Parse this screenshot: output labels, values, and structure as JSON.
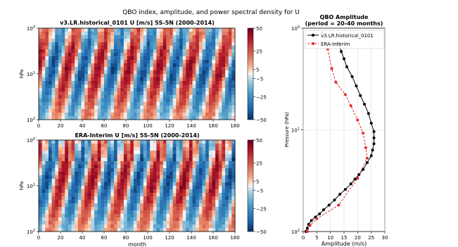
{
  "suptitle": "QBO index, amplitude, and power spectral density for U",
  "chart_data": [
    {
      "type": "heatmap",
      "title": "v3.LR.historical_0101 U [m/s] 5S-5N (2000-2014)",
      "xlabel": "",
      "ylabel": "hPa",
      "xlim": [
        0,
        180
      ],
      "x_ticks": [
        "0",
        "20",
        "40",
        "60",
        "80",
        "100",
        "120",
        "140",
        "160",
        "180"
      ],
      "ylim": [
        100,
        1
      ],
      "y_scale": "log",
      "y_ticks": [
        {
          "base": "10",
          "exp": "0"
        },
        {
          "base": "10",
          "exp": "1"
        },
        {
          "base": "10",
          "exp": "2"
        }
      ],
      "colorbar": {
        "range": [
          -50,
          50
        ],
        "ticks": [
          "50",
          "25",
          "5",
          "−5",
          "−25",
          "−50"
        ]
      }
    },
    {
      "type": "heatmap",
      "title": "ERA-Interim U [m/s] 5S-5N (2000-2014)",
      "xlabel": "month",
      "ylabel": "hPa",
      "xlim": [
        0,
        180
      ],
      "x_ticks": [
        "0",
        "20",
        "40",
        "60",
        "80",
        "100",
        "120",
        "140",
        "160",
        "180"
      ],
      "ylim": [
        100,
        1
      ],
      "y_scale": "log",
      "y_ticks": [
        {
          "base": "10",
          "exp": "0"
        },
        {
          "base": "10",
          "exp": "1"
        },
        {
          "base": "10",
          "exp": "2"
        }
      ],
      "colorbar": {
        "range": [
          -50,
          50
        ],
        "ticks": [
          "50",
          "25",
          "5",
          "−5",
          "−25",
          "−50"
        ]
      }
    },
    {
      "type": "line",
      "title": "QBO Amplitude",
      "subtitle": "(period = 20-40 months)",
      "xlabel": "Amplitude (m/s)",
      "ylabel": "Pressure (hPa)",
      "xlim": [
        0,
        30
      ],
      "x_ticks": [
        "0",
        "5",
        "10",
        "15",
        "20",
        "25",
        "30"
      ],
      "ylim": [
        100,
        1
      ],
      "y_scale": "log",
      "y_ticks": [
        {
          "base": "10",
          "exp": "0"
        },
        {
          "base": "10",
          "exp": "1"
        },
        {
          "base": "10",
          "exp": "2"
        }
      ],
      "grid": true,
      "legend": "upper-left",
      "series": [
        {
          "name": "v3.LR.historical_0101",
          "color": "#000000",
          "style": "solid",
          "marker": "o",
          "points": [
            [
              13.0,
              1.4
            ],
            [
              14.0,
              1.7
            ],
            [
              15.0,
              2.0
            ],
            [
              16.0,
              2.4
            ],
            [
              18.0,
              3.0
            ],
            [
              19.5,
              3.7
            ],
            [
              21.0,
              4.6
            ],
            [
              22.5,
              5.6
            ],
            [
              24.0,
              6.9
            ],
            [
              25.0,
              8.6
            ],
            [
              26.0,
              10.4
            ],
            [
              26.0,
              12.0
            ],
            [
              26.0,
              13.7
            ],
            [
              25.5,
              15.8
            ],
            [
              25.0,
              18.0
            ],
            [
              23.5,
              21.0
            ],
            [
              22.0,
              24.5
            ],
            [
              20.5,
              27.5
            ],
            [
              19.0,
              30.5
            ],
            [
              17.5,
              34.0
            ],
            [
              15.5,
              38.5
            ],
            [
              13.5,
              43.0
            ],
            [
              11.5,
              49.0
            ],
            [
              9.5,
              55.0
            ],
            [
              7.5,
              61.0
            ],
            [
              6.0,
              67.0
            ],
            [
              4.5,
              72.0
            ],
            [
              3.0,
              78.0
            ],
            [
              2.0,
              85.0
            ],
            [
              1.5,
              93.0
            ],
            [
              1.0,
              100.0
            ]
          ]
        },
        {
          "name": "ERA-Interim",
          "color": "#e8272a",
          "style": "dashed",
          "marker": "o",
          "points": [
            [
              7.0,
              1.1
            ],
            [
              9.0,
              1.6
            ],
            [
              10.5,
              2.5
            ],
            [
              12.0,
              3.4
            ],
            [
              15.5,
              4.5
            ],
            [
              17.5,
              5.8
            ],
            [
              20.0,
              8.0
            ],
            [
              22.0,
              10.8
            ],
            [
              23.0,
              15.0
            ],
            [
              23.5,
              19.0
            ],
            [
              20.0,
              30.0
            ],
            [
              13.0,
              55.0
            ],
            [
              5.0,
              75.0
            ],
            [
              2.5,
              87.0
            ],
            [
              1.5,
              100.0
            ]
          ]
        }
      ]
    }
  ]
}
